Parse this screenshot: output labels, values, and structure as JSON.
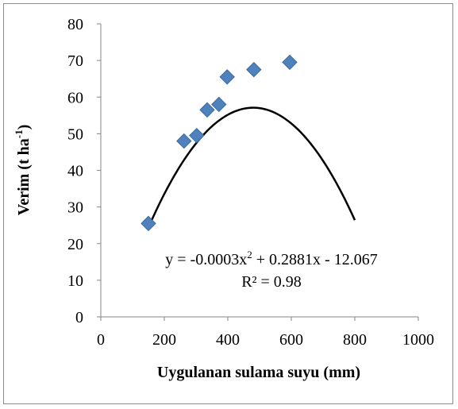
{
  "chart_data": {
    "type": "scatter",
    "xlabel": "Uygulanan sulama suyu (mm)",
    "ylabel_main": "Verim (t ha",
    "ylabel_sup": "-1",
    "ylabel_close": ")",
    "xlim": [
      0,
      1000
    ],
    "ylim": [
      0,
      80
    ],
    "x_ticks": [
      0,
      200,
      400,
      600,
      800,
      1000
    ],
    "y_ticks": [
      0,
      10,
      20,
      30,
      40,
      50,
      60,
      70,
      80
    ],
    "grid": false,
    "series": [
      {
        "marker": "diamond",
        "color": "#4f81bd",
        "points": [
          {
            "x": 150,
            "y": 25.5
          },
          {
            "x": 262,
            "y": 48
          },
          {
            "x": 302,
            "y": 49.5
          },
          {
            "x": 335,
            "y": 56.5
          },
          {
            "x": 372,
            "y": 58
          },
          {
            "x": 398,
            "y": 65.5
          },
          {
            "x": 482,
            "y": 67.5
          },
          {
            "x": 595,
            "y": 69.5
          }
        ]
      }
    ],
    "trendline": {
      "type": "polynomial",
      "coefficients": {
        "a": -0.0003,
        "b": 0.2881,
        "c": -12.067
      },
      "x_range": [
        150,
        800
      ],
      "color": "#000000",
      "equation_parts": [
        "y = -0.0003x",
        "2",
        " + 0.2881x - 12.067"
      ],
      "r2_label": "R² = 0.98"
    }
  }
}
